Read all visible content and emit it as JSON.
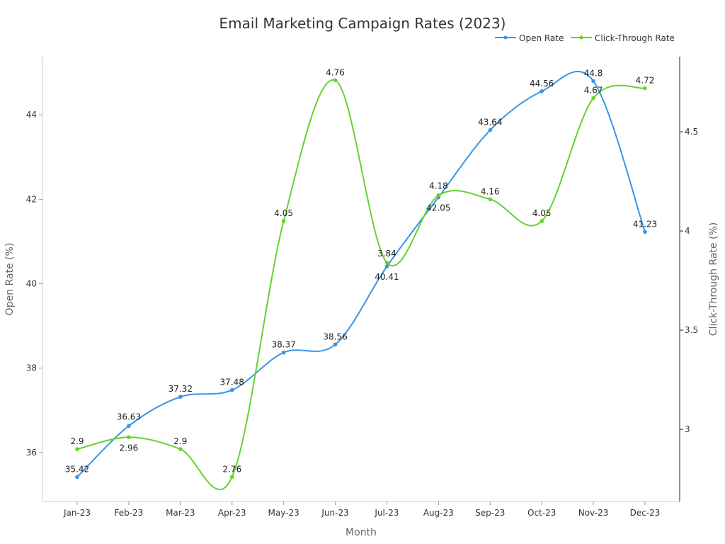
{
  "chart_data": {
    "type": "line",
    "title": "Email Marketing Campaign Rates (2023)",
    "xlabel": "Month",
    "ylabel": "Open Rate (%)",
    "y2label": "Click-Through Rate (%)",
    "categories": [
      "Jan-23",
      "Feb-23",
      "Mar-23",
      "Apr-23",
      "May-23",
      "Jun-23",
      "Jul-23",
      "Aug-23",
      "Sep-23",
      "Oct-23",
      "Nov-23",
      "Dec-23"
    ],
    "ylim": [
      34.84,
      45.38
    ],
    "y2lim": [
      2.636,
      4.879
    ],
    "yticks": [
      36,
      38,
      40,
      42,
      44
    ],
    "y2ticks": [
      3,
      3.5,
      4,
      4.5
    ],
    "legend_position": "top-right",
    "grid": false,
    "series": [
      {
        "name": "Open Rate",
        "axis": "left",
        "color": "#3a95e6",
        "values": [
          35.42,
          36.63,
          37.32,
          37.48,
          38.37,
          38.56,
          40.41,
          42.05,
          43.64,
          44.56,
          44.8,
          41.23
        ]
      },
      {
        "name": "Click-Through Rate",
        "axis": "right",
        "color": "#66d22e",
        "values": [
          2.9,
          2.96,
          2.9,
          2.76,
          4.05,
          4.76,
          3.84,
          4.18,
          4.16,
          4.05,
          4.67,
          4.72
        ]
      }
    ]
  }
}
